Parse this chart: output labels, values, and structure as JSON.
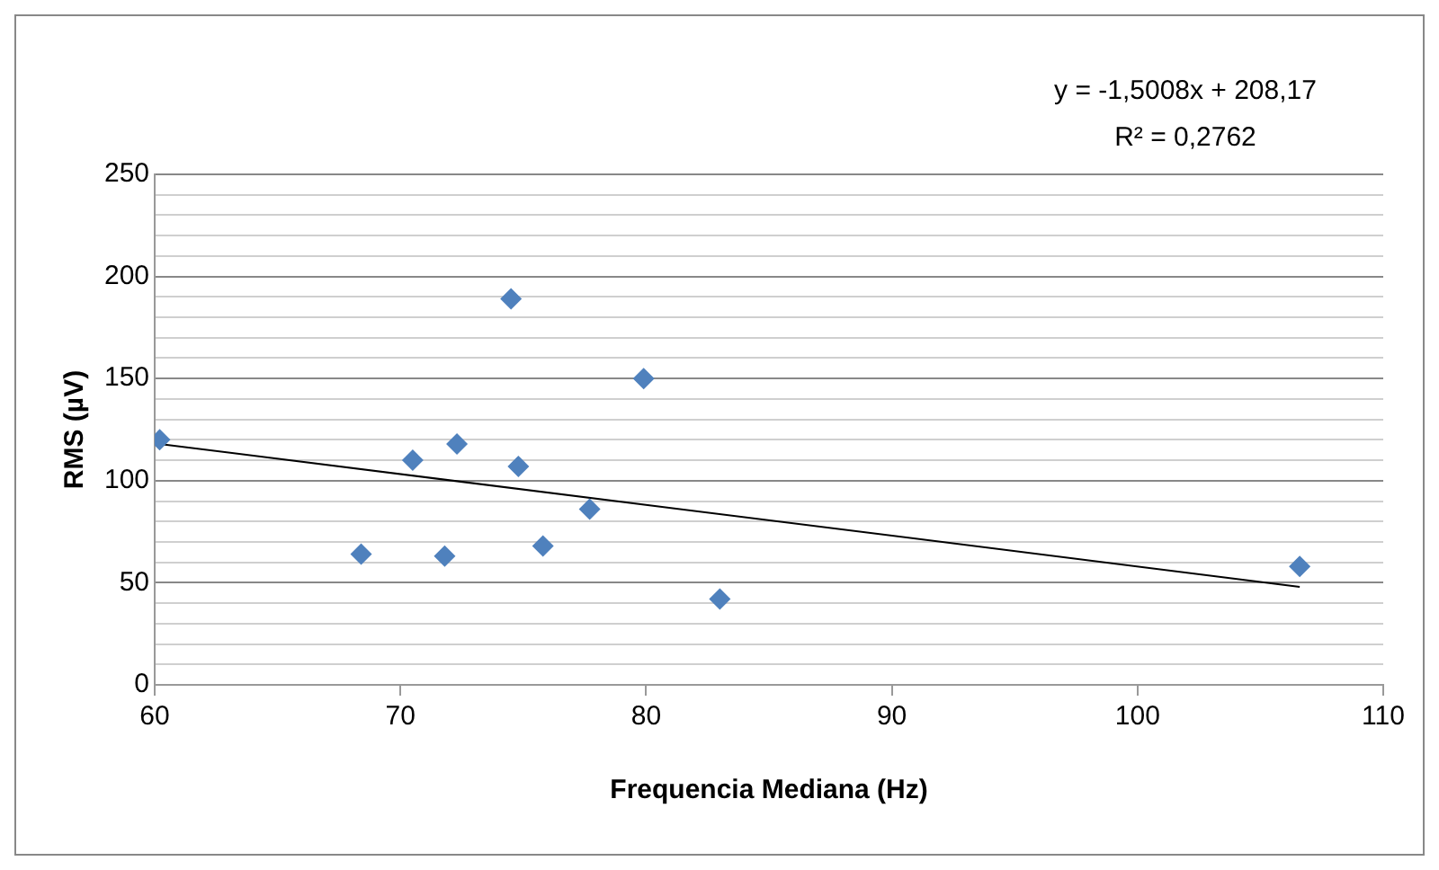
{
  "chart_data": {
    "type": "scatter",
    "xlabel": "Frequencia Mediana (Hz)",
    "ylabel": "RMS (µV)",
    "annotations": [
      "y = -1,5008x + 208,17",
      "R² = 0,2762"
    ],
    "series": [
      {
        "color": "#4f81bd",
        "marker": "diamond",
        "x": [
          60.2,
          68.4,
          70.5,
          71.8,
          72.3,
          74.5,
          74.8,
          75.8,
          77.7,
          79.9,
          83.0,
          106.6
        ],
        "values": [
          120,
          64,
          110,
          63,
          118,
          189,
          107,
          68,
          86,
          150,
          42,
          58
        ]
      },
      {
        "type": "line",
        "color": "#000000",
        "marker": "none",
        "x": [
          60.2,
          106.6
        ],
        "values": [
          118,
          48
        ]
      }
    ],
    "xlim": [
      60,
      110
    ],
    "xticks": [
      60,
      70,
      80,
      90,
      100,
      110
    ],
    "ylim": [
      0,
      250
    ],
    "yticks": [
      0,
      {
        "value": 10,
        "label": null
      },
      {
        "value": 20,
        "label": null
      },
      {
        "value": 30,
        "label": null
      },
      {
        "value": 40,
        "label": null
      },
      50,
      {
        "value": 60,
        "label": null
      },
      {
        "value": 70,
        "label": null
      },
      {
        "value": 80,
        "label": null
      },
      {
        "value": 90,
        "label": null
      },
      100,
      {
        "value": 110,
        "label": null
      },
      {
        "value": 120,
        "label": null
      },
      {
        "value": 130,
        "label": null
      },
      {
        "value": 140,
        "label": null
      },
      150,
      {
        "value": 160,
        "label": null
      },
      {
        "value": 170,
        "label": null
      },
      {
        "value": 180,
        "label": null
      },
      {
        "value": 190,
        "label": null
      },
      200,
      {
        "value": 210,
        "label": null
      },
      {
        "value": 220,
        "label": null
      },
      {
        "value": 230,
        "label": null
      },
      {
        "value": 240,
        "label": null
      },
      250
    ],
    "grid": "y",
    "legend": false
  }
}
